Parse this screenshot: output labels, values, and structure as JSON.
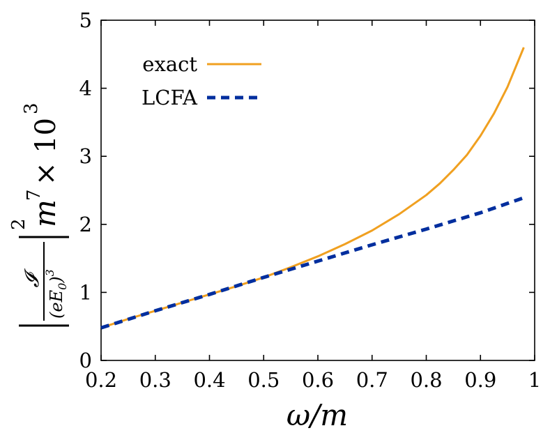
{
  "chart_data": {
    "type": "line",
    "title": "",
    "xlabel": "ω/m",
    "ylabel": {
      "numerator": "𝓘",
      "denominator": "(eE",
      "denominator_sub": "0",
      "denominator_close": ")",
      "denominator_sup": "3",
      "outer_exp": "2",
      "m_text": "m",
      "m_exp": "7",
      "times_text": "× 10",
      "times_exp": "3"
    },
    "xlim": [
      0.2,
      1.0
    ],
    "ylim": [
      0,
      5
    ],
    "xticks": [
      0.2,
      0.3,
      0.4,
      0.5,
      0.6,
      0.7,
      0.8,
      0.9,
      1.0
    ],
    "xtick_labels": [
      "0.2",
      "0.3",
      "0.4",
      "0.5",
      "0.6",
      "0.7",
      "0.8",
      "0.9",
      "1"
    ],
    "yticks": [
      0,
      1,
      2,
      3,
      4,
      5
    ],
    "ytick_labels": [
      "0",
      "1",
      "2",
      "3",
      "4",
      "5"
    ],
    "grid": false,
    "legend_position": "top-left",
    "series": [
      {
        "name": "exact",
        "color": "#f0a020",
        "style": "solid",
        "x": [
          0.2,
          0.25,
          0.3,
          0.35,
          0.4,
          0.45,
          0.5,
          0.55,
          0.6,
          0.65,
          0.7,
          0.75,
          0.8,
          0.825,
          0.85,
          0.875,
          0.9,
          0.925,
          0.95,
          0.98
        ],
        "y": [
          0.48,
          0.61,
          0.73,
          0.85,
          0.97,
          1.09,
          1.22,
          1.37,
          1.53,
          1.71,
          1.91,
          2.15,
          2.43,
          2.6,
          2.8,
          3.02,
          3.3,
          3.63,
          4.02,
          4.6
        ]
      },
      {
        "name": "LCFA",
        "color": "#002e9e",
        "style": "dashed",
        "x": [
          0.2,
          0.3,
          0.4,
          0.5,
          0.6,
          0.7,
          0.8,
          0.9,
          0.98
        ],
        "y": [
          0.48,
          0.73,
          0.97,
          1.22,
          1.46,
          1.7,
          1.93,
          2.17,
          2.39
        ]
      }
    ]
  }
}
